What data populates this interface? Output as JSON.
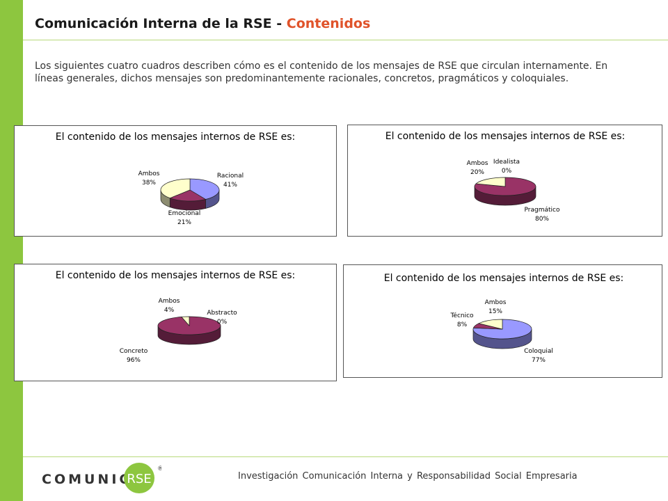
{
  "header": {
    "title_main": "Comunicación Interna de la RSE - ",
    "title_accent": "Contenidos"
  },
  "intro": "Los siguientes cuatro cuadros describen cómo es el contenido de los mensajes de RSE que circulan internamente. En líneas generales, dichos mensajes son predominantemente racionales, concretos, pragmáticos y coloquiales.",
  "colors": {
    "accent": "#e0532a",
    "green": "#8dc63f",
    "purple": "#993366",
    "blue": "#9999ff",
    "cream": "#ffffcc"
  },
  "chart_data": [
    {
      "type": "pie",
      "title": "El contenido de los mensajes internos de RSE es:",
      "slices": [
        {
          "label": "Racional",
          "value": 41,
          "display": "41%",
          "color": "#9999ff"
        },
        {
          "label": "Emocional",
          "value": 21,
          "display": "21%",
          "color": "#993366"
        },
        {
          "label": "Ambos",
          "value": 38,
          "display": "38%",
          "color": "#ffffcc"
        }
      ]
    },
    {
      "type": "pie",
      "title": "El contenido de los mensajes internos de RSE es:",
      "slices": [
        {
          "label": "Idealista",
          "value": 0,
          "display": "0%",
          "color": "#9999ff"
        },
        {
          "label": "Pragmático",
          "value": 80,
          "display": "80%",
          "color": "#993366"
        },
        {
          "label": "Ambos",
          "value": 20,
          "display": "20%",
          "color": "#ffffcc"
        }
      ]
    },
    {
      "type": "pie",
      "title": "El contenido de los mensajes internos de RSE es:",
      "slices": [
        {
          "label": "Abstracto",
          "value": 0,
          "display": "0%",
          "color": "#9999ff"
        },
        {
          "label": "Concreto",
          "value": 96,
          "display": "96%",
          "color": "#993366"
        },
        {
          "label": "Ambos",
          "value": 4,
          "display": "4%",
          "color": "#ffffcc"
        }
      ]
    },
    {
      "type": "pie",
      "title": "El contenido de los mensajes internos de RSE es:",
      "slices": [
        {
          "label": "Coloquial",
          "value": 77,
          "display": "77%",
          "color": "#9999ff"
        },
        {
          "label": "Técnico",
          "value": 8,
          "display": "8%",
          "color": "#993366"
        },
        {
          "label": "Ambos",
          "value": 15,
          "display": "15%",
          "color": "#ffffcc"
        }
      ]
    }
  ],
  "footer": {
    "tagline": "Investigación Comunicación Interna y Responsabilidad Social Empresaria",
    "logo_text": "COMUNICA",
    "logo_circle_text": "RSE",
    "logo_mark": "®"
  }
}
